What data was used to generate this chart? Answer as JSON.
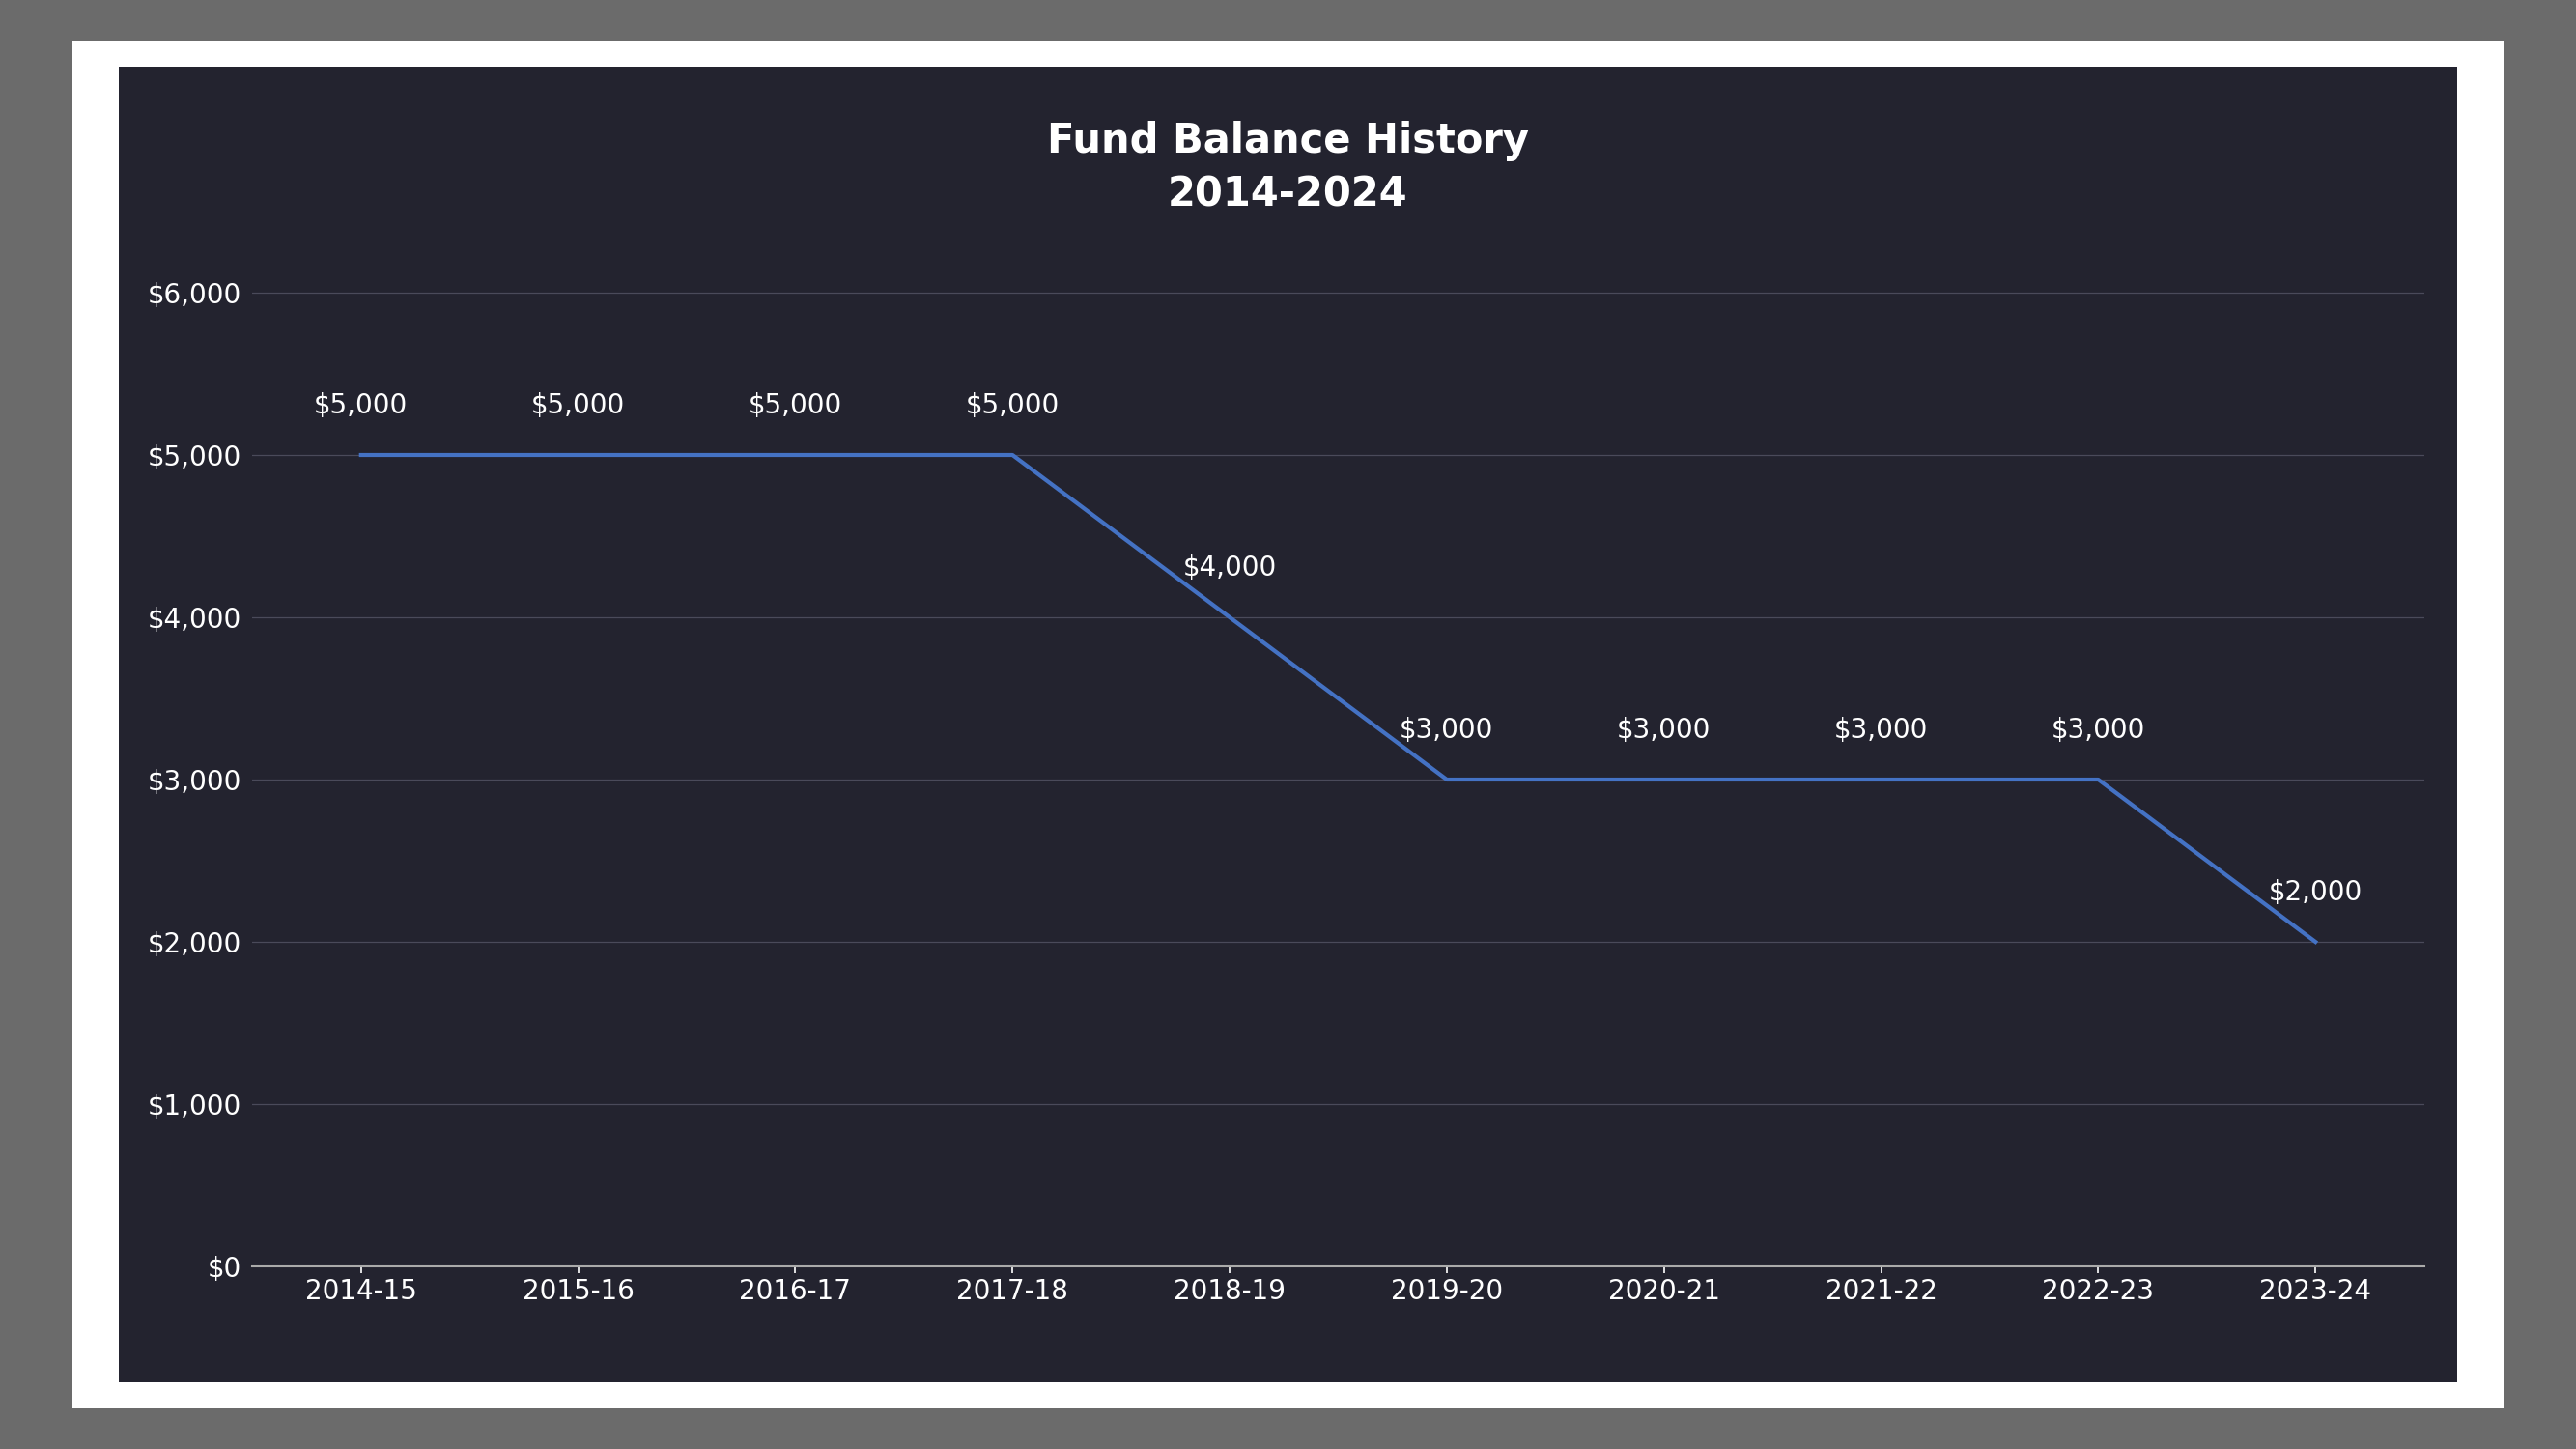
{
  "title_line1": "Fund Balance History",
  "title_line2": "2014-2024",
  "categories": [
    "2014-15",
    "2015-16",
    "2016-17",
    "2017-18",
    "2018-19",
    "2019-20",
    "2020-21",
    "2021-22",
    "2022-23",
    "2023-24"
  ],
  "values": [
    5000,
    5000,
    5000,
    5000,
    4000,
    3000,
    3000,
    3000,
    3000,
    2000
  ],
  "labels": [
    "$5,000",
    "$5,000",
    "$5,000",
    "$5,000",
    "$4,000",
    "$3,000",
    "$3,000",
    "$3,000",
    "$3,000",
    "$2,000"
  ],
  "line_color": "#4472C4",
  "line_width": 3.0,
  "background_color": "#23232F",
  "outer_background": "#6B6B6B",
  "text_color": "#FFFFFF",
  "grid_color": "#4A4A5A",
  "axis_color": "#AAAAAA",
  "ylim": [
    0,
    6500
  ],
  "yticks": [
    0,
    1000,
    2000,
    3000,
    4000,
    5000,
    6000
  ],
  "ytick_labels": [
    "$0",
    "$1,000",
    "$2,000",
    "$3,000",
    "$4,000",
    "$5,000",
    "$6,000"
  ],
  "title_fontsize": 30,
  "tick_fontsize": 20,
  "annotation_fontsize": 20,
  "frame_color": "#FFFFFF"
}
